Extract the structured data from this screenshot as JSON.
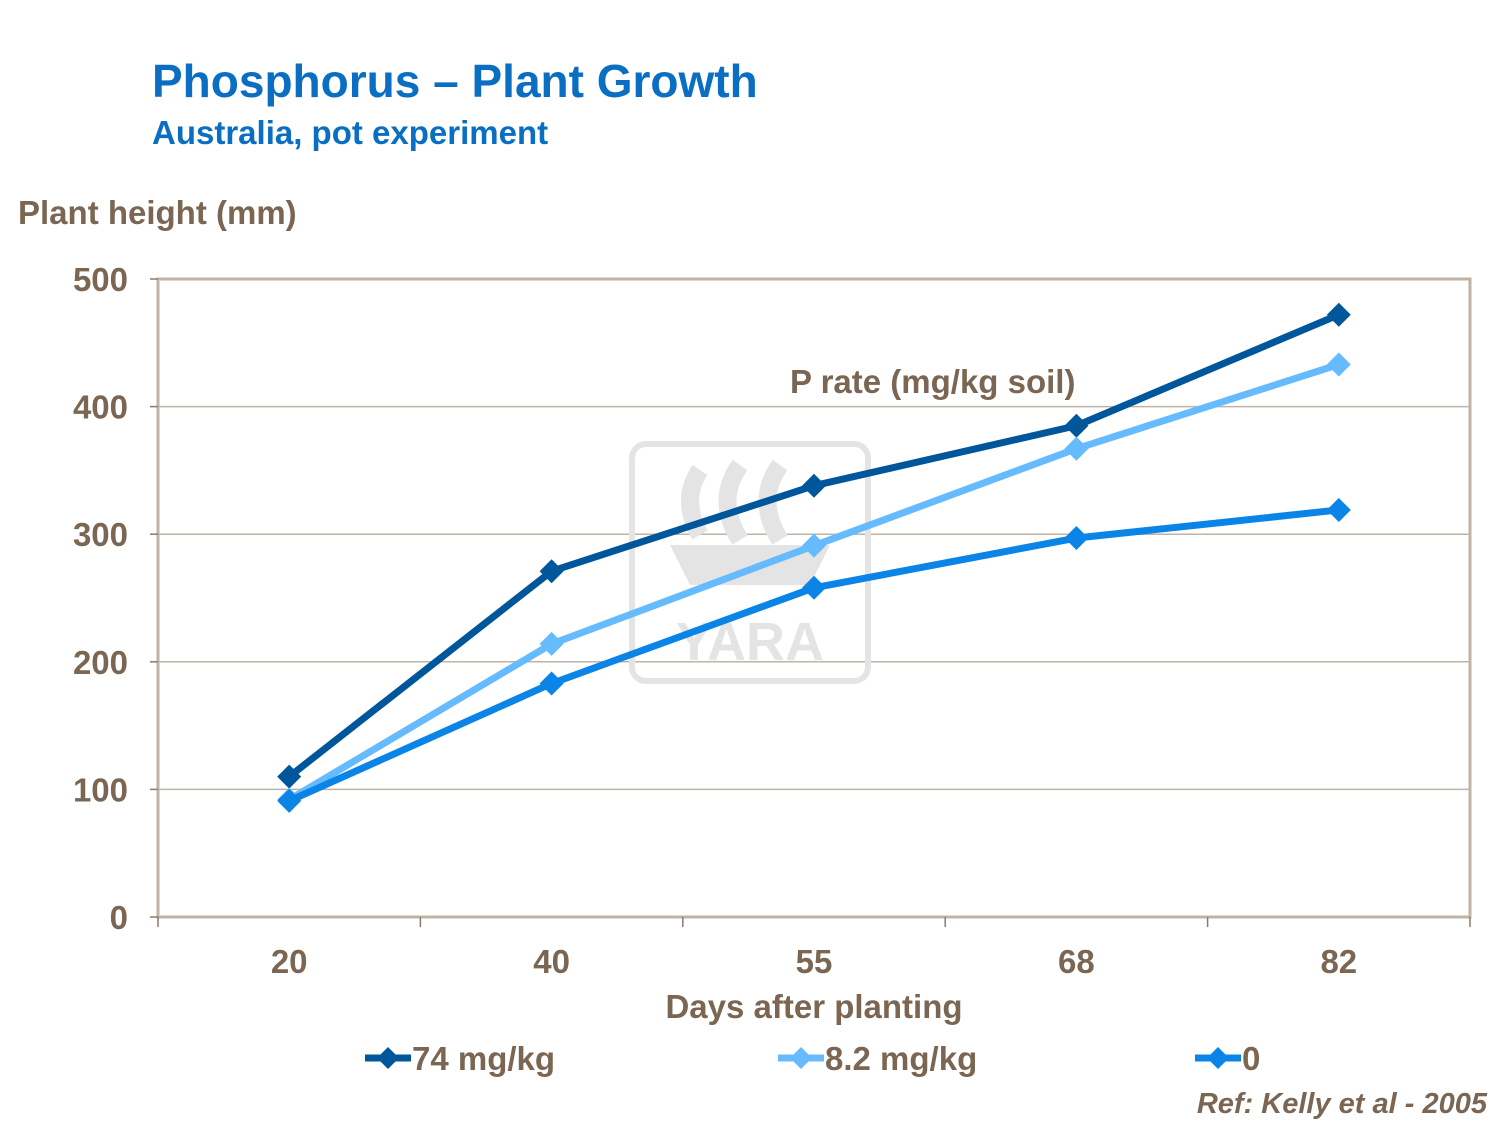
{
  "chart_data": {
    "type": "line",
    "title": "Phosphorus – Plant Growth",
    "subtitle": "Australia, pot experiment",
    "xlabel": "Days after planting",
    "ylabel": "Plant height (mm)",
    "categories": [
      "20",
      "40",
      "55",
      "68",
      "82"
    ],
    "ylim": [
      0,
      500
    ],
    "yticks": [
      "0",
      "100",
      "200",
      "300",
      "400",
      "500"
    ],
    "grid": true,
    "legend_position": "bottom",
    "legend_title": "P rate (mg/kg soil)",
    "series": [
      {
        "name": "74 mg/kg",
        "color": "#00569A",
        "values": [
          110,
          271,
          338,
          385,
          472
        ]
      },
      {
        "name": "8.2 mg/kg",
        "color": "#66BBFF",
        "values": [
          92,
          214,
          291,
          367,
          433
        ]
      },
      {
        "name": "0",
        "color": "#0A84E6",
        "values": [
          91,
          183,
          258,
          297,
          319
        ]
      }
    ],
    "reference": "Ref: Kelly et al - 2005",
    "watermark": "YARA"
  }
}
